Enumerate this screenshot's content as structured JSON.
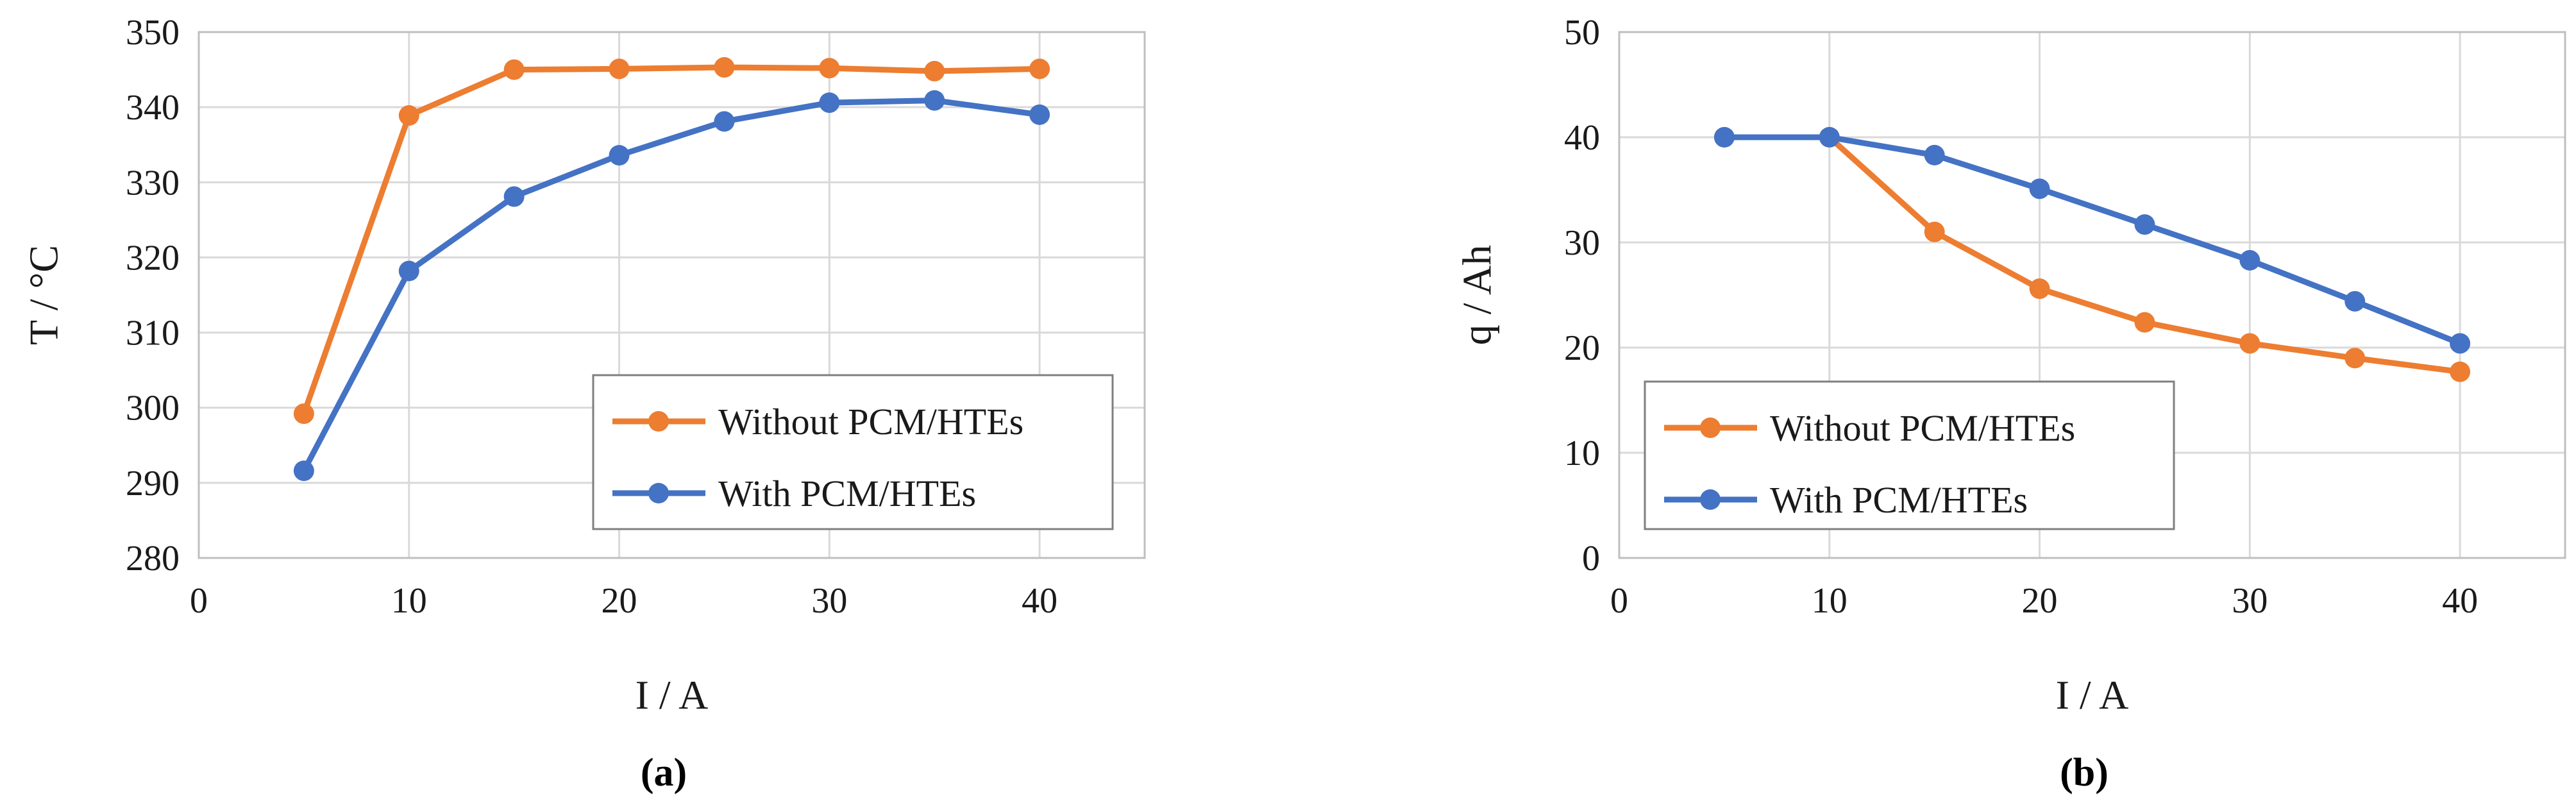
{
  "chart_data": [
    {
      "type": "line",
      "panel_label": "(a)",
      "xlabel": "I / A",
      "ylabel": "T / °C",
      "xlim": [
        0,
        45
      ],
      "ylim": [
        280,
        350
      ],
      "xticks": [
        0,
        10,
        20,
        30,
        40
      ],
      "yticks": [
        280,
        290,
        300,
        310,
        320,
        330,
        340,
        350
      ],
      "grid": true,
      "legend_position": "bottom-right",
      "x": [
        5,
        10,
        15,
        20,
        25,
        30,
        35,
        40
      ],
      "series": [
        {
          "name": "Without PCM/HTEs",
          "color": "#ED7D31",
          "values": [
            299.2,
            338.9,
            345.0,
            345.1,
            345.3,
            345.2,
            344.8,
            345.1
          ]
        },
        {
          "name": "With PCM/HTEs",
          "color": "#4472C4",
          "values": [
            291.6,
            318.2,
            328.1,
            333.6,
            338.1,
            340.6,
            340.9,
            339.0
          ]
        }
      ]
    },
    {
      "type": "line",
      "panel_label": "(b)",
      "xlabel": "I / A",
      "ylabel": "q / Ah",
      "xlim": [
        0,
        45
      ],
      "ylim": [
        0,
        50
      ],
      "xticks": [
        0,
        10,
        20,
        30,
        40
      ],
      "yticks": [
        0,
        10,
        20,
        30,
        40,
        50
      ],
      "grid": true,
      "legend_position": "bottom-left",
      "x": [
        5,
        10,
        15,
        20,
        25,
        30,
        35,
        40
      ],
      "series": [
        {
          "name": "Without PCM/HTEs",
          "color": "#ED7D31",
          "values": [
            40.0,
            40.0,
            31.0,
            25.6,
            22.4,
            20.4,
            19.0,
            17.7
          ]
        },
        {
          "name": "With PCM/HTEs",
          "color": "#4472C4",
          "values": [
            40.0,
            40.0,
            38.3,
            35.1,
            31.7,
            28.3,
            24.4,
            20.4
          ]
        }
      ]
    }
  ]
}
